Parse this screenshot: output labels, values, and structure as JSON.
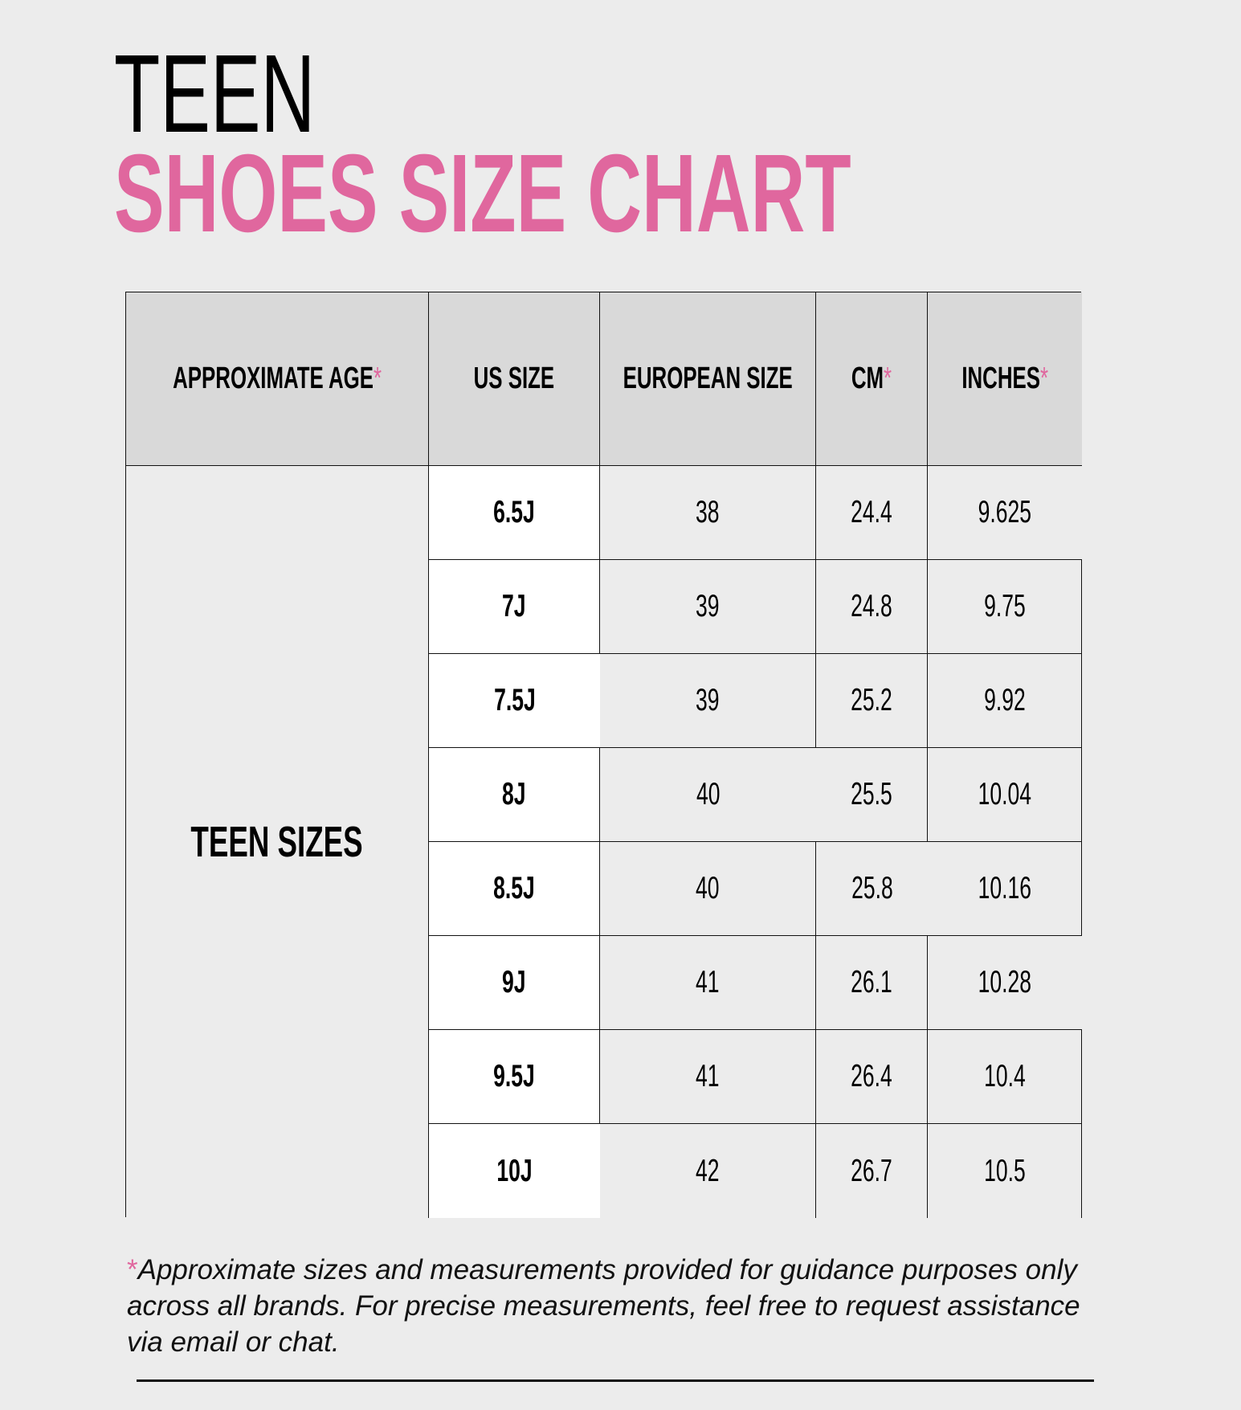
{
  "title_line1": "TEEN",
  "title_line2": "SHOES SIZE CHART",
  "accent_color": "#e0679e",
  "table": {
    "headers": [
      "APPROXIMATE AGE",
      "US SIZE",
      "EUROPEAN SIZE",
      "CM",
      "INCHES"
    ],
    "header_asterisk": "*",
    "age_group": "TEEN SIZES",
    "rows": [
      {
        "us": "6.5J",
        "eu": "38",
        "cm": "24.4",
        "in": "9.625"
      },
      {
        "us": "7J",
        "eu": "39",
        "cm": "24.8",
        "in": "9.75"
      },
      {
        "us": "7.5J",
        "eu": "39",
        "cm": "25.2",
        "in": "9.92"
      },
      {
        "us": "8J",
        "eu": "40",
        "cm": "25.5",
        "in": "10.04"
      },
      {
        "us": "8.5J",
        "eu": "40",
        "cm": "25.8",
        "in": "10.16"
      },
      {
        "us": "9J",
        "eu": "41",
        "cm": "26.1",
        "in": "10.28"
      },
      {
        "us": "9.5J",
        "eu": "41",
        "cm": "26.4",
        "in": "10.4"
      },
      {
        "us": "10J",
        "eu": "42",
        "cm": "26.7",
        "in": "10.5"
      }
    ]
  },
  "footnote": {
    "asterisk": "*",
    "text": "Approximate sizes and measurements provided for guidance purposes only across all brands. For precise measurements, feel free to request assistance via email or chat."
  }
}
